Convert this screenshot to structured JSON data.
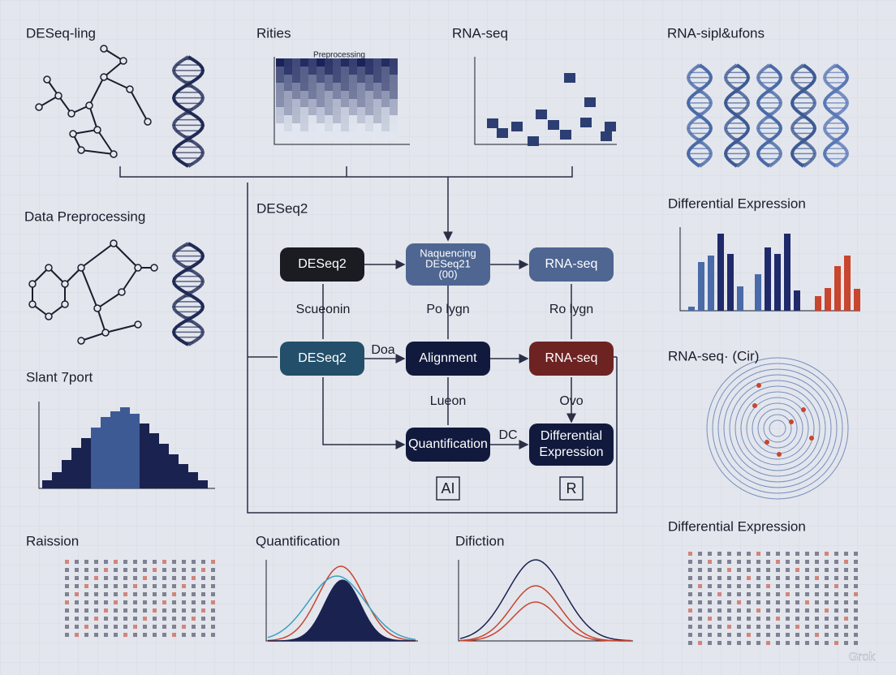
{
  "panels": {
    "top_left": "DESeq-ling",
    "top_mid": "Rities",
    "top_heatmap_title": "Preprocessing",
    "top_right_mid": "RNA-seq",
    "top_right": "RNA-sipl&ufons",
    "mid_left": "Data Preprocessing",
    "mid_right": "Differential Expression",
    "slant": "Slant 7port",
    "circ": "RNA-seq· (Cir)",
    "bottom_left": "Raission",
    "bottom_quant": "Quantification",
    "bottom_dif": "Difiction",
    "bottom_right": "Differential Expression"
  },
  "flow": {
    "title": "DESeq2",
    "nodes": [
      {
        "lines": [
          "DESeq2"
        ]
      },
      {
        "lines": [
          "Naquencing",
          "DESeq21",
          "(00)"
        ]
      },
      {
        "lines": [
          "RNA-seq"
        ]
      },
      {
        "lines": [
          "DESeq2"
        ]
      },
      {
        "lines": [
          "Alignment"
        ]
      },
      {
        "lines": [
          "RNA-seq"
        ]
      },
      {
        "lines": [
          "Quantification"
        ]
      },
      {
        "lines": [
          "Differential",
          "Expression"
        ]
      }
    ],
    "edge_labels": [
      "Scueonin",
      "Po lygn",
      "Ro lygn",
      "Doa",
      "Lueon",
      "Ovo",
      "DC"
    ],
    "tools": [
      "AI",
      "R"
    ]
  },
  "watermark": "Grok"
}
